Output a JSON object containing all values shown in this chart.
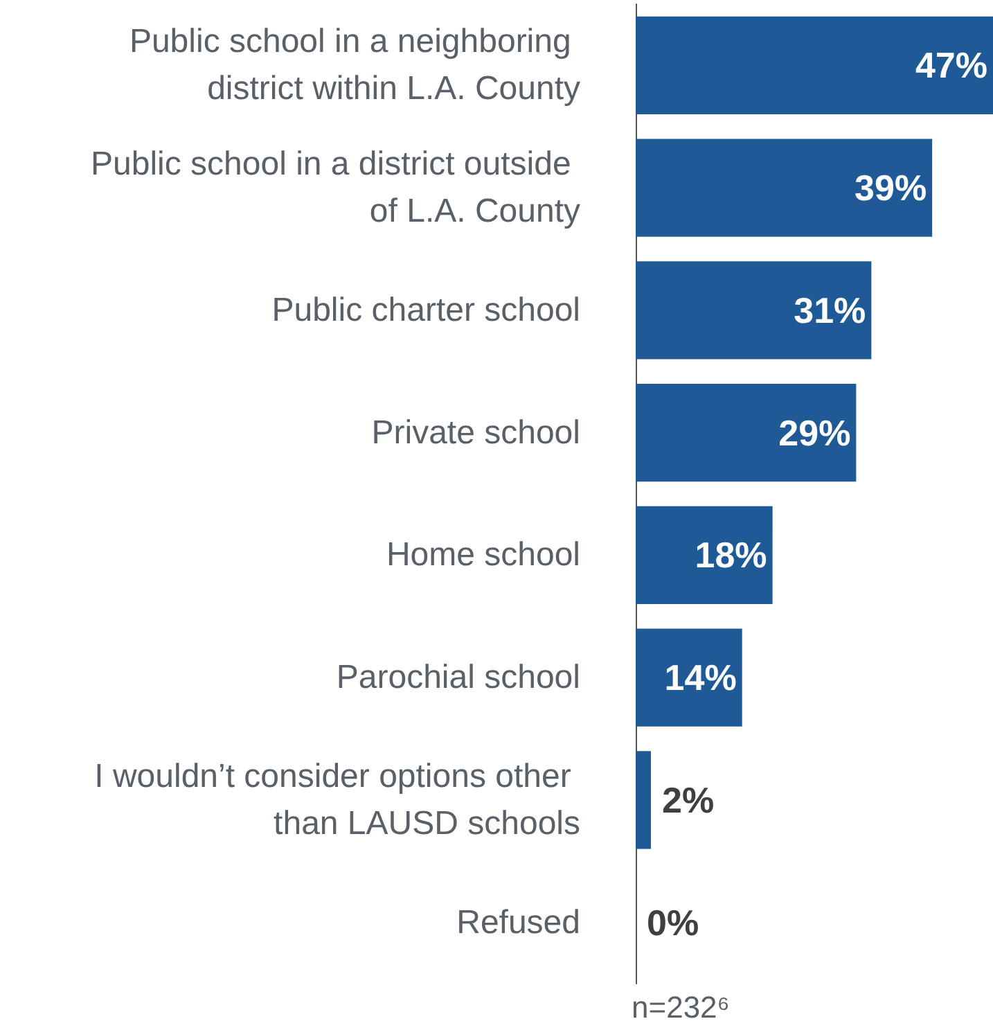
{
  "chart_data": {
    "type": "bar",
    "orientation": "horizontal",
    "categories": [
      "Public school in a neighboring district within L.A. County",
      "Public school in a district outside of L.A. County",
      "Public charter school",
      "Private school",
      "Home school",
      "Parochial school",
      "I wouldn’t consider options other than LAUSD schools",
      "Refused"
    ],
    "values": [
      47,
      39,
      31,
      29,
      18,
      14,
      2,
      0
    ],
    "value_labels": [
      "47%",
      "39%",
      "31%",
      "29%",
      "18%",
      "14%",
      "2%",
      "0%"
    ],
    "color": "#1f5a96",
    "xlim": [
      0,
      47
    ],
    "tick_labels": "y",
    "annotations": [
      "n=232⁶"
    ]
  }
}
